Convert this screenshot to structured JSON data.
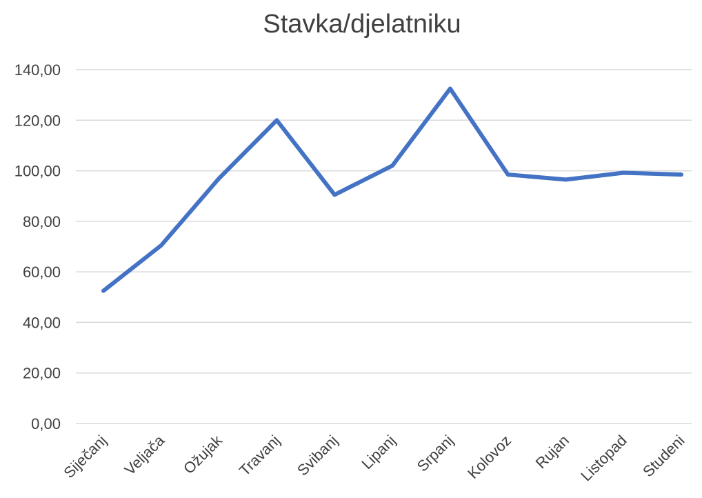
{
  "chart_data": {
    "type": "line",
    "title": "Stavka/djelatniku",
    "xlabel": "",
    "ylabel": "",
    "categories": [
      "Siječanj",
      "Veljača",
      "Ožujak",
      "Travanj",
      "Svibanj",
      "Lipanj",
      "Srpanj",
      "Kolovoz",
      "Rujan",
      "Listopad",
      "Studeni"
    ],
    "series": [
      {
        "values": [
          52.5,
          70.5,
          97.0,
          120.0,
          90.5,
          102.0,
          132.5,
          98.5,
          96.5,
          99.2,
          98.5
        ]
      }
    ],
    "ylim": [
      0,
      140
    ],
    "yticks": [
      "0,00",
      "20,00",
      "40,00",
      "60,00",
      "80,00",
      "100,00",
      "120,00",
      "140,00"
    ],
    "grid": true,
    "legend": "none",
    "colors": {
      "series": "#4472c4",
      "grid": "#d9d9d9",
      "text": "#404040"
    }
  }
}
